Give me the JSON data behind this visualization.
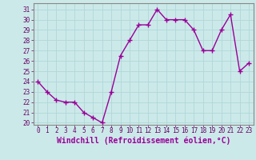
{
  "x": [
    0,
    1,
    2,
    3,
    4,
    5,
    6,
    7,
    8,
    9,
    10,
    11,
    12,
    13,
    14,
    15,
    16,
    17,
    18,
    19,
    20,
    21,
    22,
    23
  ],
  "y": [
    24,
    23,
    22.2,
    22,
    22,
    21,
    20.5,
    20,
    23,
    26.5,
    28,
    29.5,
    29.5,
    31,
    30,
    30,
    30,
    29,
    27,
    27,
    29,
    30.5,
    25,
    25.8
  ],
  "line_color": "#990099",
  "marker": "+",
  "marker_size": 4,
  "bg_color": "#cce9e9",
  "grid_color": "#b0d8d8",
  "xlabel": "Windchill (Refroidissement éolien,°C)",
  "xlabel_fontsize": 7,
  "ylim": [
    19.8,
    31.6
  ],
  "yticks": [
    20,
    21,
    22,
    23,
    24,
    25,
    26,
    27,
    28,
    29,
    30,
    31
  ],
  "xticks": [
    0,
    1,
    2,
    3,
    4,
    5,
    6,
    7,
    8,
    9,
    10,
    11,
    12,
    13,
    14,
    15,
    16,
    17,
    18,
    19,
    20,
    21,
    22,
    23
  ],
  "tick_fontsize": 5.5,
  "line_width": 1.0
}
